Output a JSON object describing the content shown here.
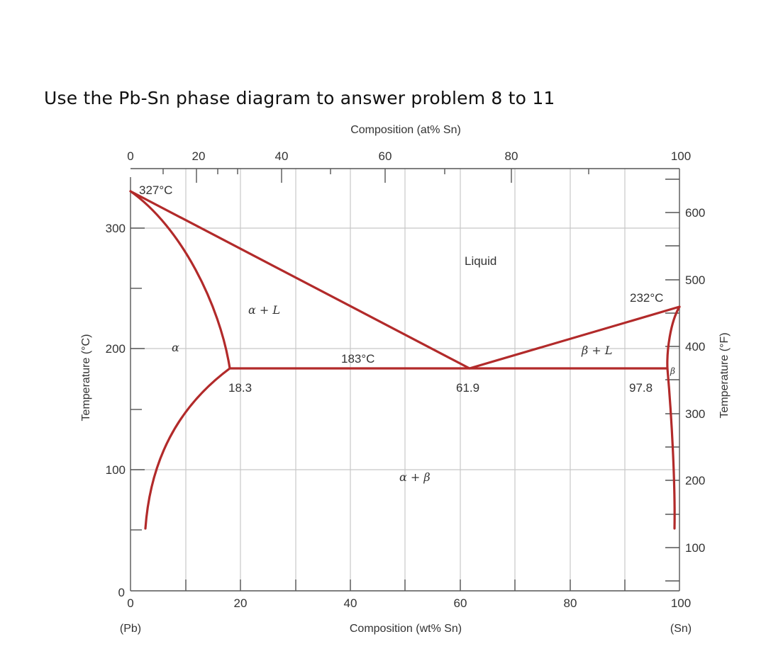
{
  "heading": "Use the Pb-Sn phase diagram to answer problem 8 to 11",
  "top_axis": {
    "title": "Composition (at% Sn)",
    "ticks": [
      "0",
      "20",
      "40",
      "60",
      "80",
      "100"
    ]
  },
  "bottom_axis": {
    "title": "Composition (wt% Sn)",
    "ticks": [
      "0",
      "20",
      "40",
      "60",
      "80",
      "100"
    ],
    "end_left": "(Pb)",
    "end_right": "(Sn)"
  },
  "left_axis": {
    "title": "Temperature (°C)",
    "ticks": [
      "0",
      "100",
      "200",
      "300"
    ]
  },
  "right_axis": {
    "title": "Temperature (°F)",
    "ticks": [
      "100",
      "200",
      "300",
      "400",
      "500",
      "600"
    ]
  },
  "annotations": {
    "pb_melt": "327°C",
    "sn_melt": "232°C",
    "eutectic_temp": "183°C",
    "alpha_limit": "18.3",
    "eutectic_comp": "61.9",
    "beta_limit": "97.8"
  },
  "regions": {
    "liquid": "Liquid",
    "alpha_plus_liquid": "α + L",
    "beta_plus_liquid": "β + L",
    "alpha": "α",
    "beta": "β",
    "alpha_plus_beta": "α + β"
  },
  "colors": {
    "phase_boundary": "#b22a2a",
    "grid": "#c8c8c8",
    "frame": "#555555"
  }
}
